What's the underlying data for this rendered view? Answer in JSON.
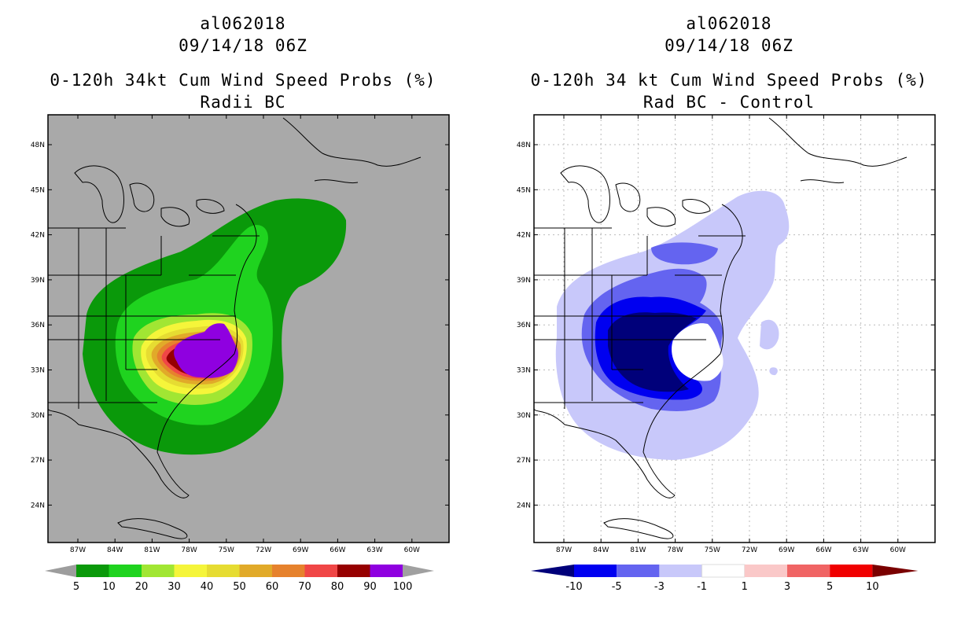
{
  "panels": [
    {
      "storm_id": "al062018",
      "datetime": "09/14/18 06Z",
      "product_title": "0-120h 34kt Cum Wind Speed Probs (%)",
      "subtitle": "Radii BC",
      "background_color": "#a9a9a9",
      "lat_labels": [
        "48N",
        "45N",
        "42N",
        "39N",
        "36N",
        "33N",
        "30N",
        "27N",
        "24N"
      ],
      "lon_labels": [
        "87W",
        "84W",
        "81W",
        "78W",
        "75W",
        "72W",
        "69W",
        "66W",
        "63W",
        "60W"
      ],
      "colorbar": {
        "colors": [
          "#9d9d9d",
          "#0a990a",
          "#1fd31f",
          "#a1e633",
          "#f5f53a",
          "#e6dc32",
          "#e1aa29",
          "#e6822d",
          "#f04646",
          "#960000",
          "#8f00e0",
          "#a0a0a0"
        ],
        "labels": [
          "5",
          "10",
          "20",
          "30",
          "40",
          "50",
          "60",
          "70",
          "80",
          "90",
          "100"
        ]
      }
    },
    {
      "storm_id": "al062018",
      "datetime": "09/14/18 06Z",
      "product_title": "0-120h 34 kt Cum Wind Speed Probs (%)",
      "subtitle": "Rad BC - Control",
      "background_color": "#ffffff",
      "lat_labels": [
        "48N",
        "45N",
        "42N",
        "39N",
        "36N",
        "33N",
        "30N",
        "27N",
        "24N"
      ],
      "lon_labels": [
        "87W",
        "84W",
        "81W",
        "78W",
        "75W",
        "72W",
        "69W",
        "66W",
        "63W",
        "60W"
      ],
      "colorbar": {
        "colors": [
          "#00007a",
          "#0000f0",
          "#6464f0",
          "#c8c8fa",
          "#ffffff",
          "#fac8c8",
          "#f06464",
          "#f00000",
          "#7a0000"
        ],
        "labels": [
          "-10",
          "-5",
          "-3",
          "-1",
          "1",
          "3",
          "5",
          "10"
        ]
      }
    }
  ]
}
